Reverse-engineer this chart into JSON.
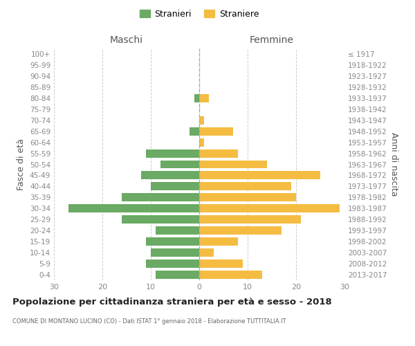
{
  "age_groups": [
    "0-4",
    "5-9",
    "10-14",
    "15-19",
    "20-24",
    "25-29",
    "30-34",
    "35-39",
    "40-44",
    "45-49",
    "50-54",
    "55-59",
    "60-64",
    "65-69",
    "70-74",
    "75-79",
    "80-84",
    "85-89",
    "90-94",
    "95-99",
    "100+"
  ],
  "birth_years": [
    "2013-2017",
    "2008-2012",
    "2003-2007",
    "1998-2002",
    "1993-1997",
    "1988-1992",
    "1983-1987",
    "1978-1982",
    "1973-1977",
    "1968-1972",
    "1963-1967",
    "1958-1962",
    "1953-1957",
    "1948-1952",
    "1943-1947",
    "1938-1942",
    "1933-1937",
    "1928-1932",
    "1923-1927",
    "1918-1922",
    "≤ 1917"
  ],
  "maschi": [
    9,
    11,
    10,
    11,
    9,
    16,
    27,
    16,
    10,
    12,
    8,
    11,
    0,
    2,
    0,
    0,
    1,
    0,
    0,
    0,
    0
  ],
  "femmine": [
    13,
    9,
    3,
    8,
    17,
    21,
    29,
    20,
    19,
    25,
    14,
    8,
    1,
    7,
    1,
    0,
    2,
    0,
    0,
    0,
    0
  ],
  "male_color": "#6aaa64",
  "female_color": "#f5bc42",
  "background_color": "#ffffff",
  "grid_color": "#cccccc",
  "title": "Popolazione per cittadinanza straniera per età e sesso - 2018",
  "subtitle": "COMUNE DI MONTANO LUCINO (CO) - Dati ISTAT 1° gennaio 2018 - Elaborazione TUTTITALIA.IT",
  "xlabel_left": "Maschi",
  "xlabel_right": "Femmine",
  "ylabel_left": "Fasce di età",
  "ylabel_right": "Anni di nascita",
  "legend_male": "Stranieri",
  "legend_female": "Straniere",
  "xlim": 30,
  "dashed_line_color": "#aaaaaa"
}
